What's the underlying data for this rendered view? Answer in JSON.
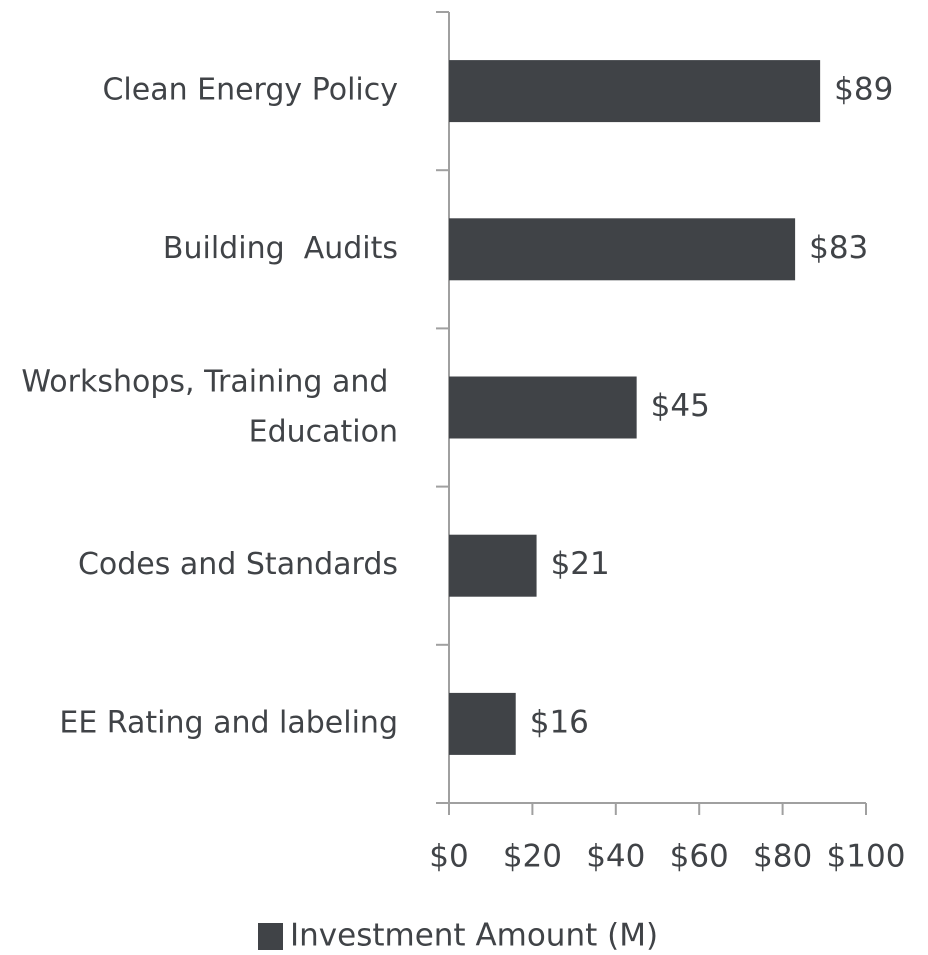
{
  "chart_data": {
    "type": "bar",
    "orientation": "horizontal",
    "categories": [
      "Clean Energy Policy",
      "Building  Audits",
      "Workshops, Training and Education",
      "Codes and Standards",
      "EE Rating and labeling"
    ],
    "series": [
      {
        "name": "Investment Amount (M)",
        "color": "#404347",
        "values": [
          89,
          83,
          45,
          21,
          16
        ],
        "value_labels": [
          "$89",
          "$83",
          "$45",
          "$21",
          "$16"
        ]
      }
    ],
    "xlim": [
      0,
      100
    ],
    "xticks": [
      {
        "value": 0,
        "label": "$0"
      },
      {
        "value": 20,
        "label": "$20"
      },
      {
        "value": 40,
        "label": "$40"
      },
      {
        "value": 60,
        "label": "$60"
      },
      {
        "value": 80,
        "label": "$80"
      },
      {
        "value": 100,
        "label": "$100"
      }
    ],
    "grid": false,
    "legend": "bottom"
  }
}
